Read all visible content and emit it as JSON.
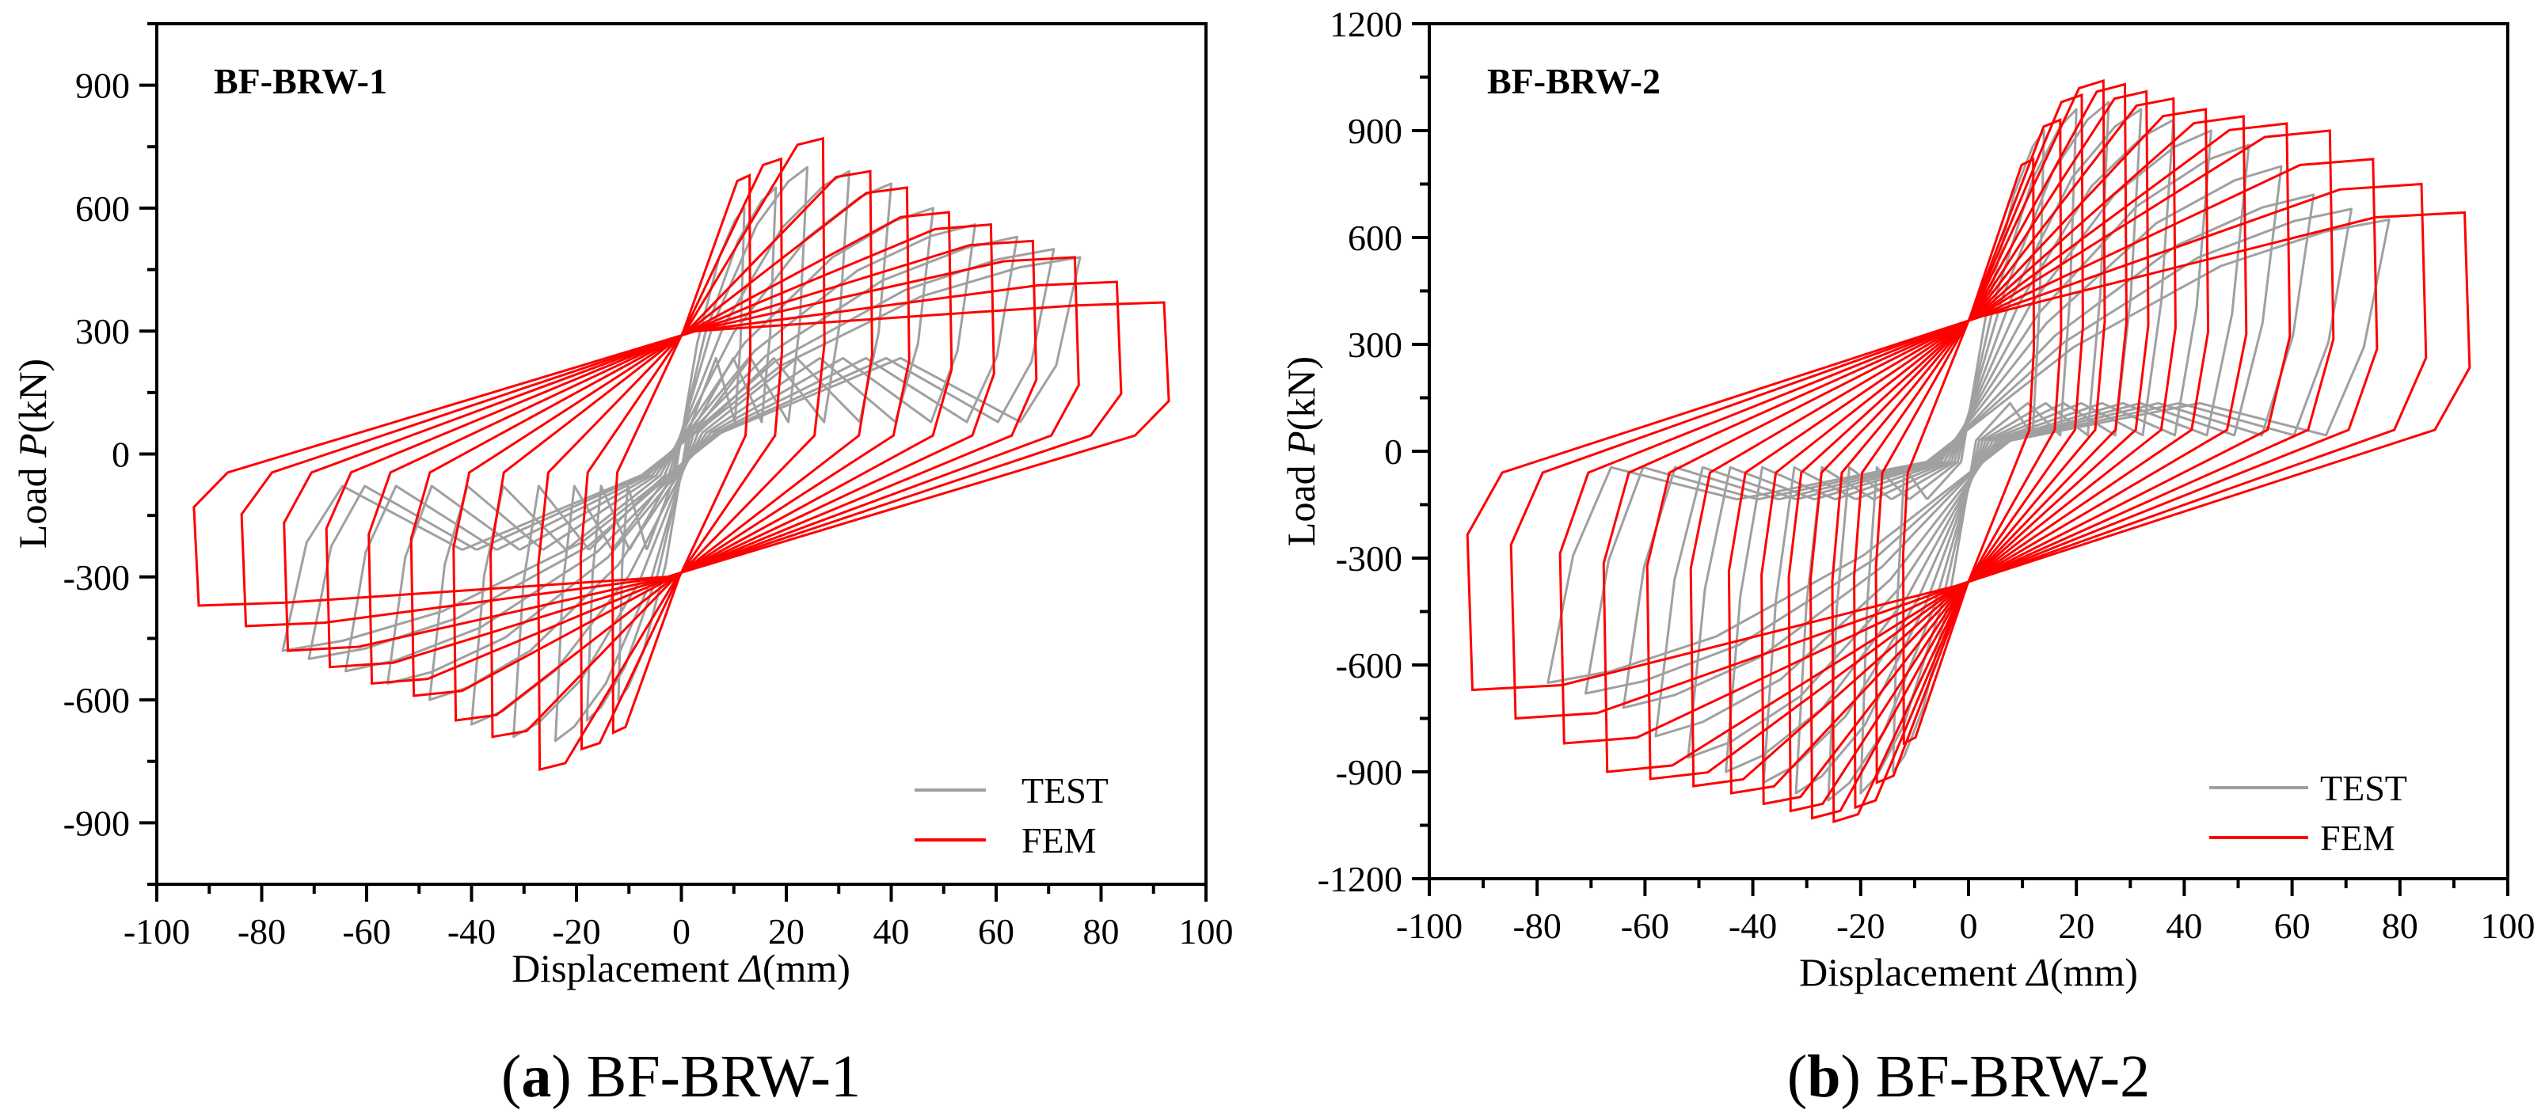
{
  "colors": {
    "test": "#a0a0a0",
    "fem": "#ff0000",
    "axis": "#000000"
  },
  "chart_data": [
    {
      "type": "line",
      "title": "BF-BRW-1",
      "caption": {
        "letter": "a",
        "open": "(",
        "close": ")",
        "text": "BF-BRW-1"
      },
      "xlabel": {
        "prefix": "Displacement ",
        "symbol": "Δ",
        "suffix": "(mm)"
      },
      "ylabel": {
        "prefix": "Load ",
        "symbol": "P",
        "suffix": "(kN)"
      },
      "xlim": [
        -100,
        100
      ],
      "ylim": [
        -1050,
        1050
      ],
      "x_ticks": [
        -100,
        -80,
        -60,
        -40,
        -20,
        0,
        20,
        40,
        60,
        80,
        100
      ],
      "y_ticks": [
        -900,
        -600,
        -300,
        0,
        300,
        600,
        900
      ],
      "legend": {
        "position": "bottom-right",
        "entries": [
          "TEST",
          "FEM"
        ]
      },
      "fem_cycles": [
        {
          "d": 13,
          "p": 680
        },
        {
          "d": 19,
          "p": 720
        },
        {
          "d": 27,
          "p": 770
        },
        {
          "d": 36,
          "p": 690
        },
        {
          "d": 43,
          "p": 650
        },
        {
          "d": 51,
          "p": 590
        },
        {
          "d": 59,
          "p": 560
        },
        {
          "d": 67,
          "p": 520
        },
        {
          "d": 75,
          "p": 480
        },
        {
          "d": 83,
          "p": 420
        },
        {
          "d": 92,
          "p": 370
        }
      ],
      "test_cycles": [
        {
          "d": 12,
          "p": 600
        },
        {
          "d": 18,
          "p": 650
        },
        {
          "d": 24,
          "p": 700
        },
        {
          "d": 32,
          "p": 690
        },
        {
          "d": 40,
          "p": 660
        },
        {
          "d": 48,
          "p": 600
        },
        {
          "d": 56,
          "p": 560
        },
        {
          "d": 64,
          "p": 530
        },
        {
          "d": 71,
          "p": 500
        },
        {
          "d": 76,
          "p": 480
        }
      ],
      "test_pinch_load": 260
    },
    {
      "type": "line",
      "title": "BF-BRW-2",
      "caption": {
        "letter": "b",
        "open": "(",
        "close": ")",
        "text": "BF-BRW-2"
      },
      "xlabel": {
        "prefix": "Displacement ",
        "symbol": "Δ",
        "suffix": "(mm)"
      },
      "ylabel": {
        "prefix": "Load ",
        "symbol": "P",
        "suffix": "(kN)"
      },
      "xlim": [
        -100,
        100
      ],
      "ylim": [
        -1200,
        1200
      ],
      "x_ticks": [
        -100,
        -80,
        -60,
        -40,
        -20,
        0,
        20,
        40,
        60,
        80,
        100
      ],
      "y_ticks": [
        -1200,
        -900,
        -600,
        -300,
        0,
        300,
        600,
        900,
        1200
      ],
      "legend": {
        "position": "bottom-right",
        "entries": [
          "TEST",
          "FEM"
        ]
      },
      "fem_cycles": [
        {
          "d": 12,
          "p": 820
        },
        {
          "d": 17,
          "p": 930
        },
        {
          "d": 21,
          "p": 1000
        },
        {
          "d": 25,
          "p": 1040
        },
        {
          "d": 29,
          "p": 1030
        },
        {
          "d": 33,
          "p": 1010
        },
        {
          "d": 38,
          "p": 990
        },
        {
          "d": 44,
          "p": 960
        },
        {
          "d": 51,
          "p": 940
        },
        {
          "d": 59,
          "p": 920
        },
        {
          "d": 67,
          "p": 900
        },
        {
          "d": 75,
          "p": 820
        },
        {
          "d": 84,
          "p": 750
        },
        {
          "d": 92,
          "p": 670
        }
      ],
      "test_cycles": [
        {
          "d": 14,
          "p": 900
        },
        {
          "d": 20,
          "p": 960
        },
        {
          "d": 26,
          "p": 980
        },
        {
          "d": 32,
          "p": 960
        },
        {
          "d": 38,
          "p": 930
        },
        {
          "d": 45,
          "p": 900
        },
        {
          "d": 52,
          "p": 860
        },
        {
          "d": 58,
          "p": 800
        },
        {
          "d": 64,
          "p": 720
        },
        {
          "d": 71,
          "p": 680
        },
        {
          "d": 78,
          "p": 650
        }
      ],
      "test_pinch_load": 150
    }
  ]
}
